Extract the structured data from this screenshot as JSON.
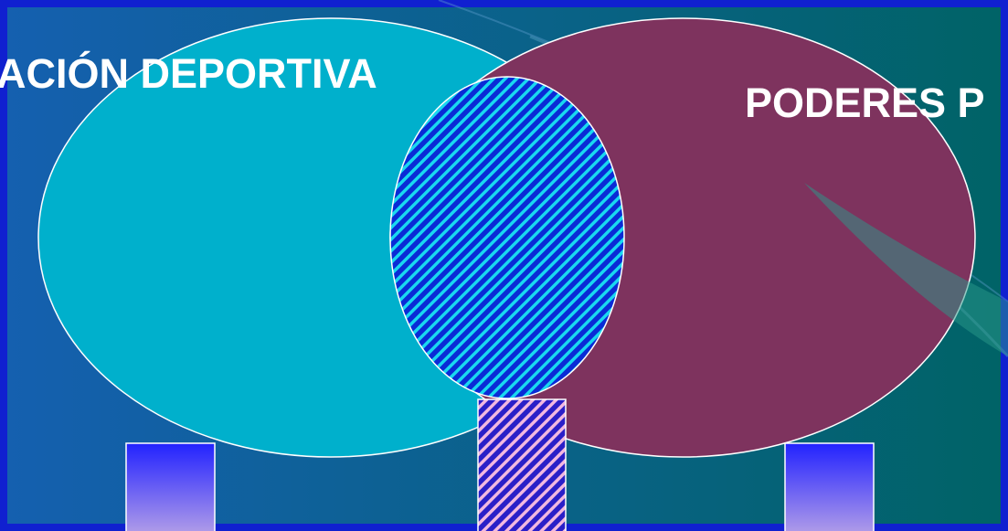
{
  "labels": {
    "left": "ACIÓN DEPORTIVA",
    "right": "PODERES P"
  }
}
